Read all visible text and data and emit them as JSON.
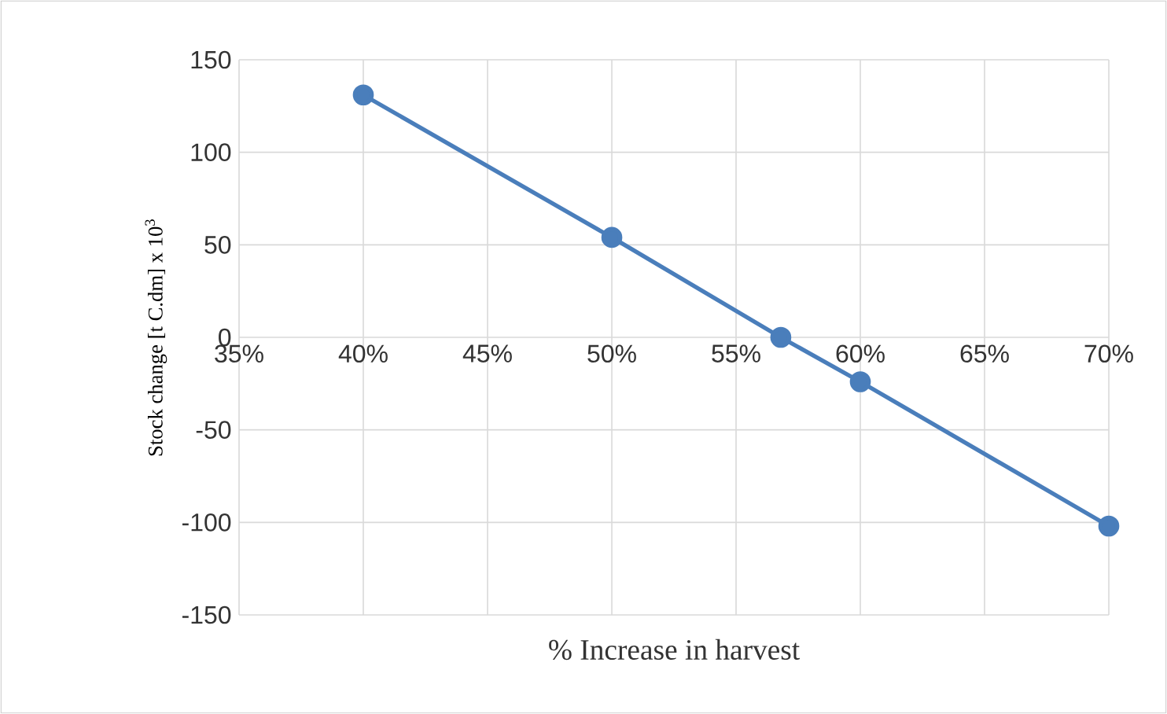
{
  "chart_data": {
    "type": "line",
    "xlabel": "% Increase in harvest",
    "ylabel": "Stock change [t C.dm] x 10$^{3}$",
    "x": [
      40,
      50,
      56.8,
      60,
      70
    ],
    "series": [
      {
        "color": "#4a7ebb",
        "values": [
          131,
          54,
          0,
          -24,
          -102
        ]
      }
    ],
    "xlim": [
      35,
      70
    ],
    "ylim": [
      -150,
      150
    ],
    "xticks": [
      {
        "value": 35,
        "label": "35%"
      },
      {
        "value": 40,
        "label": "40%"
      },
      {
        "value": 45,
        "label": "45%"
      },
      {
        "value": 50,
        "label": "50%"
      },
      {
        "value": 55,
        "label": "55%"
      },
      {
        "value": 60,
        "label": "60%"
      },
      {
        "value": 65,
        "label": "65%"
      },
      {
        "value": 70,
        "label": "70%"
      }
    ],
    "yticks": [
      -150,
      -100,
      -50,
      0,
      50,
      100,
      150
    ],
    "grid": true,
    "marker": "circle",
    "line_style": "solid",
    "legend": false
  }
}
